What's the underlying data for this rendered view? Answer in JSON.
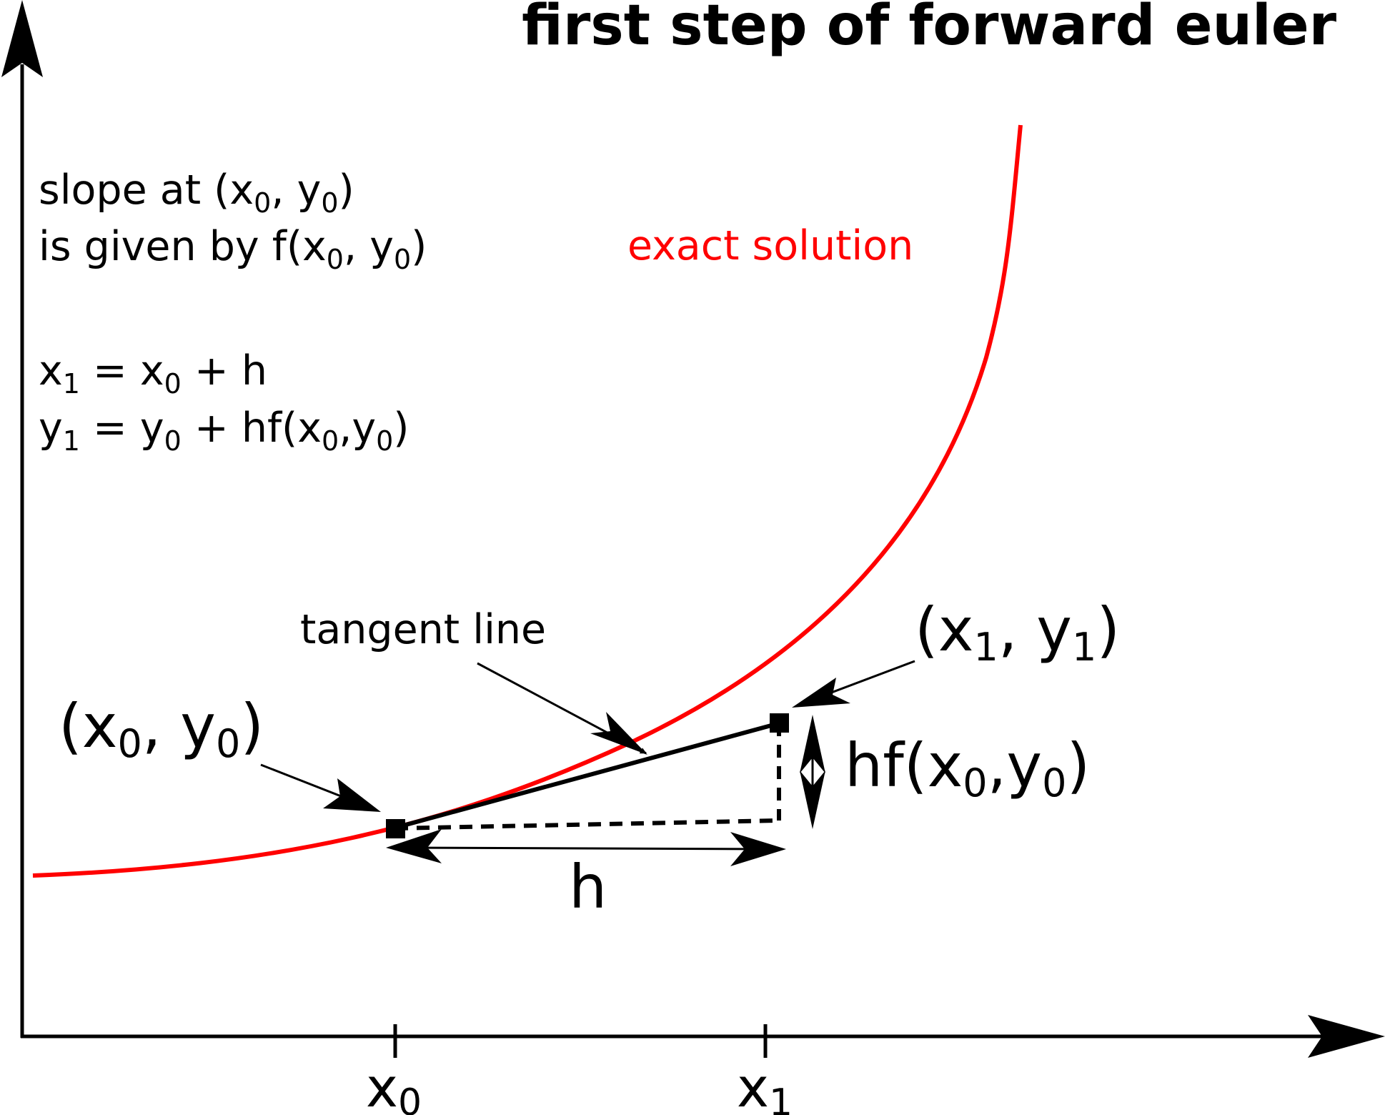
{
  "title": "first step of forward euler",
  "notes": {
    "slope_line1_pre": "slope at (x",
    "slope_line1_sub1": "0",
    "slope_line1_mid": ", y",
    "slope_line1_sub2": "0",
    "slope_line1_post": ")",
    "slope_line2_pre": "is given by f(x",
    "slope_line2_sub1": "0",
    "slope_line2_mid": ", y",
    "slope_line2_sub2": "0",
    "slope_line2_post": ")",
    "eq1_a": "x",
    "eq1_sub_a": "1",
    "eq1_b": " = x",
    "eq1_sub_b": "0",
    "eq1_c": " + h",
    "eq2_a": "y",
    "eq2_sub_a": "1",
    "eq2_b": " = y",
    "eq2_sub_b": "0",
    "eq2_c": " + hf(x",
    "eq2_sub_c": "0",
    "eq2_d": ",y",
    "eq2_sub_d": "0",
    "eq2_e": ")"
  },
  "labels": {
    "exact_solution": "exact solution",
    "tangent_line": "tangent line",
    "point0_pre": "(x",
    "point0_sub1": "0",
    "point0_mid": ", y",
    "point0_sub2": "0",
    "point0_post": ")",
    "point1_pre": "(x",
    "point1_sub1": "1",
    "point1_mid": ", y",
    "point1_sub2": "1",
    "point1_post": ")",
    "rise_pre": "hf(x",
    "rise_sub1": "0",
    "rise_mid": ",y",
    "rise_sub2": "0",
    "rise_post": ")",
    "step": "h"
  },
  "ticks": {
    "x0": "x",
    "x0_sub": "0",
    "x1": "x",
    "x1_sub": "1"
  },
  "colors": {
    "curve": "#ff0000",
    "ink": "#000000"
  }
}
